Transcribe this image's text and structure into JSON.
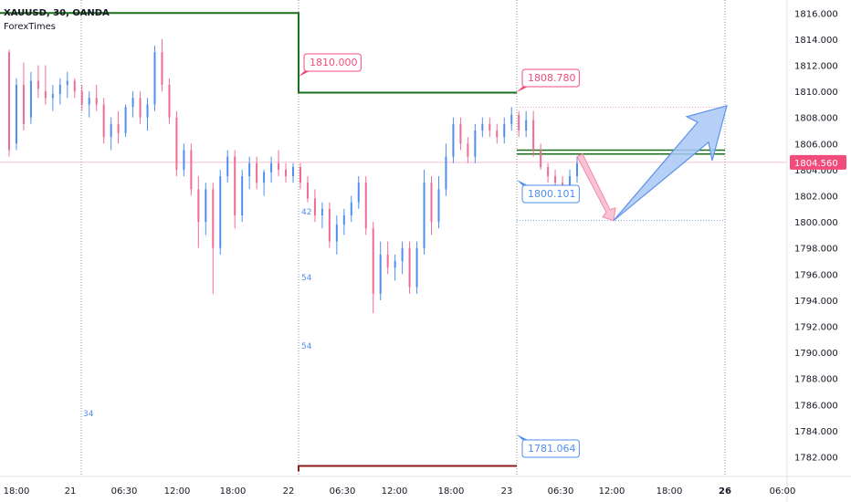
{
  "header": {
    "symbol_line": "XAUUSD, 30, OANDA",
    "source": "ForexTimes"
  },
  "colors": {
    "up": "#4f8ef0",
    "down": "#f06c93",
    "green": "#1b6e1b",
    "darkred": "#8b1e1e",
    "pink_line": "#f4a8bd",
    "blue_line": "#6fa0e8",
    "price_badge": "#f24c7c"
  },
  "chart_data": {
    "type": "candlestick",
    "title": "XAUUSD, 30, OANDA",
    "ylim": [
      1780.5,
      1817.0
    ],
    "yticks": [
      "1816.000",
      "1814.000",
      "1812.000",
      "1810.000",
      "1808.000",
      "1806.000",
      "1804.000",
      "1802.000",
      "1800.000",
      "1798.000",
      "1796.000",
      "1794.000",
      "1792.000",
      "1790.000",
      "1788.000",
      "1786.000",
      "1784.000",
      "1782.000"
    ],
    "ytick_values": [
      1816,
      1814,
      1812,
      1810,
      1808,
      1806,
      1804,
      1802,
      1800,
      1798,
      1796,
      1794,
      1792,
      1790,
      1788,
      1786,
      1784,
      1782
    ],
    "xticks": [
      "18:00",
      "21",
      "06:30",
      "12:00",
      "18:00",
      "22",
      "06:30",
      "12:00",
      "18:00",
      "23",
      "06:30",
      "12:00",
      "18:00",
      "26",
      "06:00"
    ],
    "current_price": "1804.560",
    "current_price_value": 1804.56,
    "annotations": {
      "high_22": "1810.000",
      "high_23": "1808.780",
      "low_23": "1800.101",
      "low_bottom": "1781.064",
      "small_labels": [
        "42",
        "54",
        "54",
        "34"
      ]
    },
    "candles": [
      [
        1813.0,
        1813.2,
        1805.0,
        1805.5
      ],
      [
        1806.0,
        1811.0,
        1805.5,
        1810.5
      ],
      [
        1810.5,
        1812.2,
        1807.0,
        1807.5
      ],
      [
        1808.0,
        1811.5,
        1807.5,
        1810.8
      ],
      [
        1810.8,
        1812.0,
        1809.5,
        1810.2
      ],
      [
        1810.0,
        1812.0,
        1809.0,
        1809.5
      ],
      [
        1809.5,
        1810.5,
        1808.5,
        1809.8
      ],
      [
        1809.8,
        1811.0,
        1809.0,
        1810.5
      ],
      [
        1810.5,
        1811.5,
        1809.5,
        1810.8
      ],
      [
        1810.8,
        1811.0,
        1809.5,
        1810.0
      ],
      [
        1810.0,
        1810.5,
        1808.5,
        1809.0
      ],
      [
        1809.0,
        1810.0,
        1808.0,
        1809.5
      ],
      [
        1809.5,
        1810.5,
        1808.5,
        1809.0
      ],
      [
        1809.0,
        1809.5,
        1806.0,
        1806.5
      ],
      [
        1806.5,
        1808.0,
        1805.5,
        1807.5
      ],
      [
        1807.5,
        1808.5,
        1806.0,
        1806.8
      ],
      [
        1806.8,
        1809.0,
        1806.5,
        1808.8
      ],
      [
        1808.8,
        1810.0,
        1808.0,
        1809.5
      ],
      [
        1809.5,
        1810.0,
        1807.5,
        1808.0
      ],
      [
        1808.0,
        1809.5,
        1807.0,
        1809.0
      ],
      [
        1809.0,
        1813.5,
        1808.5,
        1813.0
      ],
      [
        1813.0,
        1814.0,
        1810.0,
        1810.5
      ],
      [
        1810.5,
        1811.0,
        1807.5,
        1808.0
      ],
      [
        1808.0,
        1808.5,
        1803.5,
        1804.0
      ],
      [
        1804.0,
        1806.0,
        1803.5,
        1805.5
      ],
      [
        1805.5,
        1806.0,
        1802.0,
        1802.5
      ],
      [
        1802.5,
        1803.5,
        1798.0,
        1800.0
      ],
      [
        1800.0,
        1803.0,
        1799.0,
        1802.5
      ],
      [
        1802.5,
        1803.0,
        1794.5,
        1798.0
      ],
      [
        1798.0,
        1804.0,
        1797.5,
        1803.5
      ],
      [
        1803.5,
        1805.5,
        1803.0,
        1805.0
      ],
      [
        1805.0,
        1805.5,
        1799.5,
        1800.5
      ],
      [
        1800.5,
        1804.0,
        1800.0,
        1803.5
      ],
      [
        1803.5,
        1805.0,
        1802.5,
        1804.5
      ],
      [
        1804.5,
        1805.0,
        1802.5,
        1803.0
      ],
      [
        1803.0,
        1804.0,
        1802.0,
        1803.8
      ],
      [
        1803.8,
        1805.0,
        1803.0,
        1804.5
      ],
      [
        1804.5,
        1805.5,
        1803.5,
        1804.0
      ],
      [
        1804.0,
        1804.5,
        1803.0,
        1803.5
      ],
      [
        1803.5,
        1804.5,
        1803.0,
        1804.2
      ],
      [
        1804.2,
        1804.5,
        1802.5,
        1803.0
      ],
      [
        1803.0,
        1803.5,
        1801.5,
        1801.8
      ],
      [
        1801.8,
        1802.5,
        1800.0,
        1800.5
      ],
      [
        1800.5,
        1801.5,
        1799.5,
        1801.0
      ],
      [
        1801.0,
        1801.5,
        1798.0,
        1798.5
      ],
      [
        1798.5,
        1800.5,
        1797.5,
        1799.8
      ],
      [
        1799.8,
        1801.0,
        1799.0,
        1800.5
      ],
      [
        1800.5,
        1802.0,
        1800.0,
        1801.5
      ],
      [
        1801.5,
        1803.5,
        1801.0,
        1803.0
      ],
      [
        1803.0,
        1803.5,
        1799.0,
        1799.5
      ],
      [
        1799.5,
        1800.0,
        1793.0,
        1794.5
      ],
      [
        1794.5,
        1798.5,
        1794.0,
        1797.5
      ],
      [
        1797.5,
        1798.5,
        1796.0,
        1796.5
      ],
      [
        1796.5,
        1797.5,
        1795.5,
        1797.0
      ],
      [
        1797.0,
        1798.5,
        1796.0,
        1798.0
      ],
      [
        1798.0,
        1798.5,
        1794.5,
        1795.0
      ],
      [
        1795.0,
        1798.5,
        1794.5,
        1798.0
      ],
      [
        1798.0,
        1804.0,
        1797.5,
        1803.0
      ],
      [
        1803.0,
        1803.5,
        1799.0,
        1800.0
      ],
      [
        1800.0,
        1803.5,
        1799.5,
        1802.5
      ],
      [
        1802.5,
        1806.0,
        1802.0,
        1805.0
      ],
      [
        1805.0,
        1808.0,
        1804.5,
        1807.5
      ],
      [
        1807.5,
        1808.0,
        1805.5,
        1806.0
      ],
      [
        1806.0,
        1806.5,
        1804.5,
        1805.0
      ],
      [
        1805.0,
        1807.5,
        1804.5,
        1807.0
      ],
      [
        1807.0,
        1808.0,
        1806.5,
        1807.5
      ],
      [
        1807.5,
        1808.0,
        1806.5,
        1807.0
      ],
      [
        1807.0,
        1807.5,
        1806.0,
        1806.5
      ],
      [
        1806.5,
        1808.0,
        1806.0,
        1807.5
      ],
      [
        1807.5,
        1808.8,
        1807.0,
        1808.2
      ],
      [
        1808.2,
        1808.5,
        1806.5,
        1807.0
      ],
      [
        1807.0,
        1808.5,
        1806.5,
        1807.8
      ],
      [
        1807.8,
        1808.5,
        1805.0,
        1805.5
      ],
      [
        1805.5,
        1806.0,
        1804.0,
        1804.2
      ],
      [
        1804.2,
        1804.5,
        1803.0,
        1803.5
      ],
      [
        1803.5,
        1804.0,
        1802.5,
        1803.0
      ],
      [
        1803.0,
        1803.5,
        1802.0,
        1802.5
      ],
      [
        1802.5,
        1804.0,
        1802.0,
        1803.5
      ],
      [
        1803.5,
        1805.0,
        1803.0,
        1804.5
      ]
    ],
    "levels": {
      "green_left_top": 1816.0,
      "green_mid": 1809.9,
      "green_right_a": 1805.5,
      "green_right_b": 1805.2,
      "red_bottom": 1781.3,
      "pink_dotted": 1808.78,
      "blue_dotted": 1800.101
    },
    "projection": {
      "down_from": 1805.0,
      "down_to": 1800.1,
      "up_to": 1808.9
    }
  }
}
